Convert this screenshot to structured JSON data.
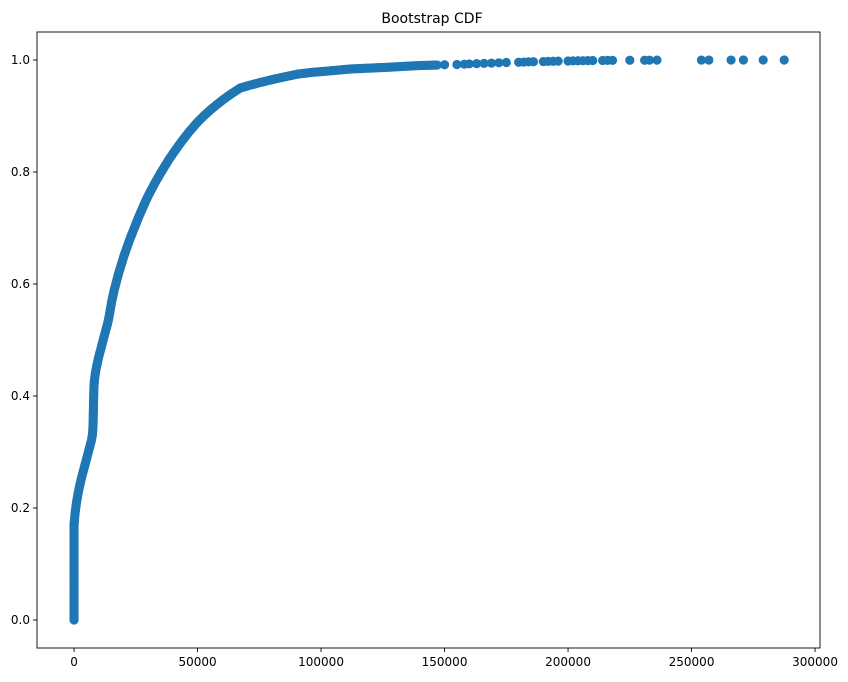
{
  "chart_data": {
    "type": "scatter",
    "title": "Bootstrap CDF",
    "xlabel": "",
    "ylabel": "",
    "xlim": [
      -15000,
      302000
    ],
    "ylim": [
      -0.05,
      1.05
    ],
    "xticks": [
      0,
      50000,
      100000,
      150000,
      200000,
      250000,
      300000
    ],
    "xtick_labels": [
      "0",
      "50000",
      "100000",
      "150000",
      "200000",
      "250000",
      "300000"
    ],
    "yticks": [
      0.0,
      0.2,
      0.4,
      0.6,
      0.8,
      1.0
    ],
    "ytick_labels": [
      "0.0",
      "0.2",
      "0.4",
      "0.6",
      "0.8",
      "1.0"
    ],
    "grid": false,
    "legend": "none",
    "marker_color": "#1f77b4",
    "series": [
      {
        "x": [
          0,
          0,
          0,
          0,
          0,
          0,
          0,
          0,
          0,
          0,
          0,
          0,
          0,
          0,
          0,
          0,
          0,
          0,
          200,
          400,
          700,
          1000,
          1400,
          1800,
          2300,
          2800,
          3400,
          4000,
          4600,
          5200,
          5800,
          6400,
          7000,
          7400,
          7600,
          7700,
          7750,
          7800,
          7850,
          7900,
          7950,
          8000,
          8100,
          8300,
          8600,
          9000,
          9500,
          10000,
          10600,
          11200,
          11800,
          12400,
          13000,
          13600,
          14100,
          14500,
          14900,
          15300,
          15800,
          16300,
          16900,
          17500,
          18100,
          18800,
          19500,
          20200,
          21000,
          21800,
          22600,
          23500,
          24400,
          25300,
          26200,
          27200,
          28200,
          29200,
          30300,
          31500,
          32700,
          34000,
          35300,
          36700,
          38100,
          39600,
          41200,
          42800,
          44500,
          46300,
          48200,
          50200,
          52500,
          55000,
          57700,
          60600,
          63800,
          67300,
          71200,
          75500,
          80200,
          85300,
          90800,
          96500,
          102000,
          107000,
          112000,
          117000,
          122000,
          127000,
          131000,
          135000,
          139000,
          143000,
          147000,
          150000,
          155000,
          158000,
          160000,
          163000,
          166000,
          169000,
          172000,
          175000,
          180000,
          182000,
          184000,
          186000,
          190000,
          192000,
          194000,
          196000,
          200000,
          202000,
          204000,
          206000,
          208000,
          210000,
          214000,
          216000,
          218000,
          225000,
          231000,
          233000,
          236000,
          254000,
          257000,
          266000,
          271000,
          279000,
          287500
        ],
        "y": [
          0.0,
          0.01,
          0.02,
          0.03,
          0.04,
          0.05,
          0.06,
          0.07,
          0.08,
          0.09,
          0.1,
          0.11,
          0.12,
          0.13,
          0.14,
          0.15,
          0.16,
          0.17,
          0.18,
          0.19,
          0.2,
          0.21,
          0.22,
          0.23,
          0.24,
          0.25,
          0.26,
          0.27,
          0.28,
          0.29,
          0.3,
          0.31,
          0.32,
          0.33,
          0.34,
          0.35,
          0.36,
          0.37,
          0.38,
          0.39,
          0.4,
          0.41,
          0.42,
          0.43,
          0.44,
          0.45,
          0.46,
          0.47,
          0.48,
          0.49,
          0.5,
          0.51,
          0.52,
          0.53,
          0.54,
          0.55,
          0.56,
          0.57,
          0.58,
          0.59,
          0.6,
          0.61,
          0.62,
          0.63,
          0.64,
          0.65,
          0.66,
          0.67,
          0.68,
          0.69,
          0.7,
          0.71,
          0.72,
          0.73,
          0.74,
          0.75,
          0.76,
          0.77,
          0.78,
          0.79,
          0.8,
          0.81,
          0.82,
          0.83,
          0.84,
          0.85,
          0.86,
          0.87,
          0.88,
          0.89,
          0.9,
          0.91,
          0.92,
          0.93,
          0.94,
          0.95,
          0.955,
          0.96,
          0.965,
          0.97,
          0.975,
          0.978,
          0.98,
          0.982,
          0.984,
          0.985,
          0.986,
          0.987,
          0.988,
          0.989,
          0.99,
          0.9905,
          0.991,
          0.9915,
          0.992,
          0.9925,
          0.993,
          0.9935,
          0.994,
          0.9945,
          0.995,
          0.9955,
          0.996,
          0.9963,
          0.9966,
          0.9969,
          0.9972,
          0.9975,
          0.9978,
          0.998,
          0.9982,
          0.9984,
          0.9986,
          0.9988,
          0.999,
          0.9991,
          0.9992,
          0.9993,
          0.9994,
          0.9995,
          0.9996,
          0.9997,
          0.9998,
          0.99985,
          0.9999,
          0.99993,
          0.99996,
          0.99998,
          1.0
        ]
      }
    ]
  }
}
